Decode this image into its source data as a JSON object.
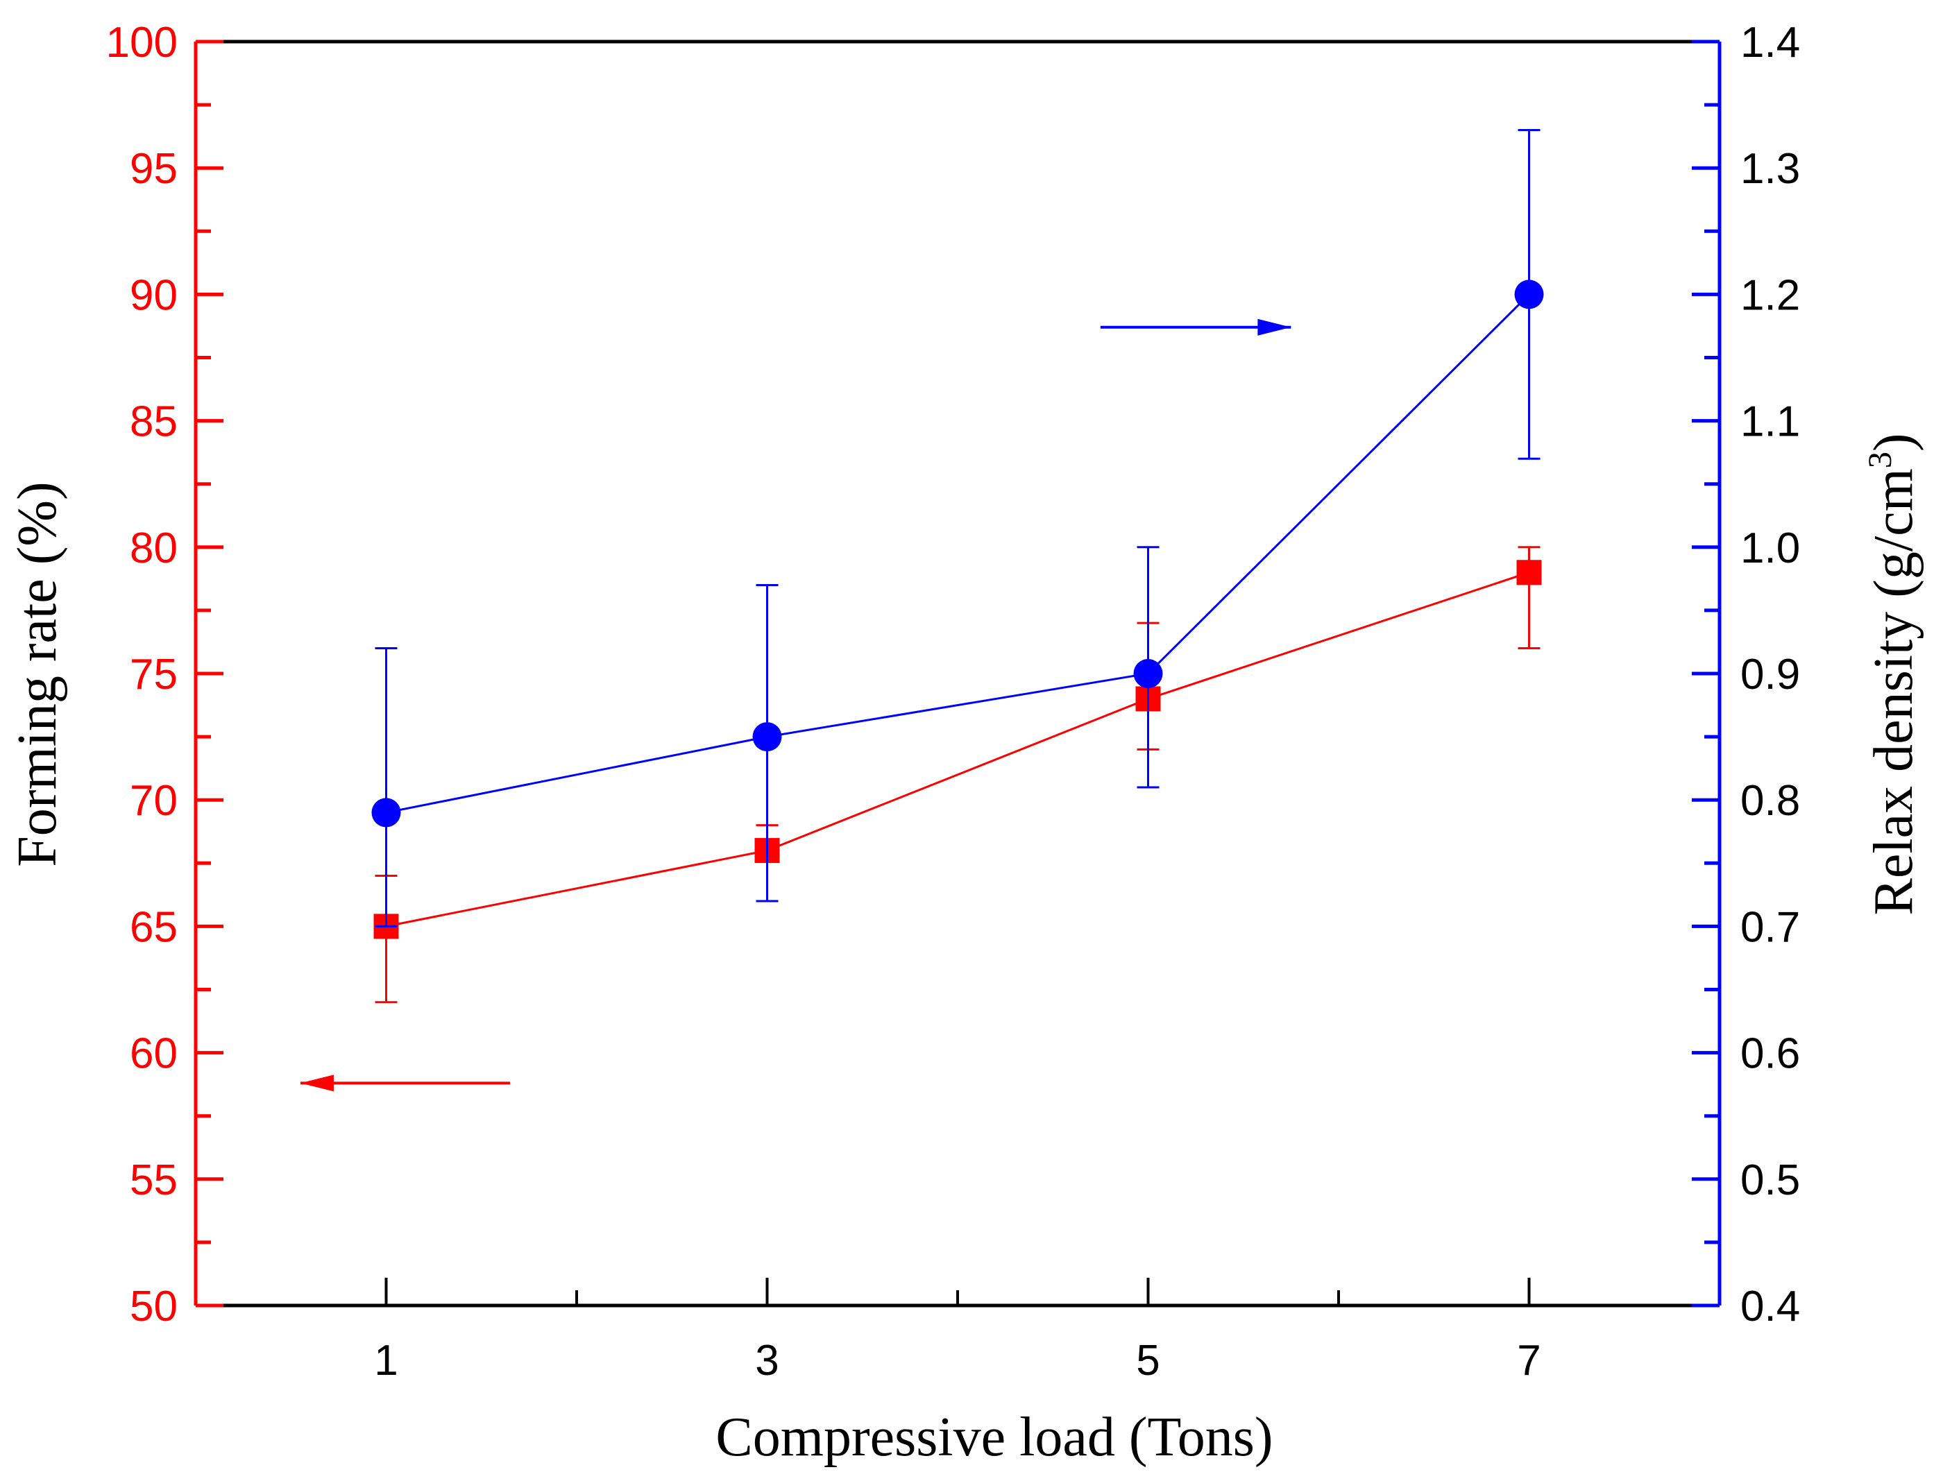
{
  "chart_data": {
    "type": "line",
    "title": "",
    "xlabel": "Compressive load (Tons)",
    "ylabel_left": "Forming rate (%)",
    "ylabel_right_main": "Relax density (g/cm",
    "ylabel_right_sup": "3",
    "ylabel_right_close": ")",
    "xlim": [
      0,
      8
    ],
    "ylim_left": [
      50,
      100
    ],
    "ylim_right": [
      0.4,
      1.4
    ],
    "x_ticks": [
      "1",
      "3",
      "5",
      "7"
    ],
    "x_tick_values": [
      1,
      3,
      5,
      7
    ],
    "y_left_ticks": [
      "50",
      "55",
      "60",
      "65",
      "70",
      "75",
      "80",
      "85",
      "90",
      "95",
      "100"
    ],
    "y_right_ticks": [
      "0.4",
      "0.5",
      "0.6",
      "0.7",
      "0.8",
      "0.9",
      "1.0",
      "1.1",
      "1.2",
      "1.3",
      "1.4"
    ],
    "grid": false,
    "series": [
      {
        "name": "Forming rate",
        "axis": "left",
        "marker": "square",
        "color": "#ff0000",
        "x": [
          1,
          3,
          5,
          7
        ],
        "values": [
          65,
          68,
          74,
          79
        ],
        "err_low": [
          62,
          66,
          72,
          76
        ],
        "err_high": [
          67,
          69,
          77,
          80
        ]
      },
      {
        "name": "Relax density",
        "axis": "right",
        "marker": "circle",
        "color": "#0000ff",
        "x": [
          1,
          3,
          5,
          7
        ],
        "values": [
          0.79,
          0.85,
          0.9,
          1.2
        ],
        "err_low": [
          0.7,
          0.72,
          0.81,
          1.07
        ],
        "err_high": [
          0.92,
          0.97,
          1.0,
          1.33
        ]
      }
    ],
    "annotations": [
      {
        "type": "arrow",
        "direction": "left",
        "color": "#ff0000",
        "refers_to": "left-axis",
        "x": [
          1.65,
          0.55
        ],
        "y": 58.8
      },
      {
        "type": "arrow",
        "direction": "right",
        "color": "#0000ff",
        "refers_to": "right-axis",
        "x": [
          4.75,
          5.75
        ],
        "y": 88.7
      }
    ],
    "colors": {
      "left_axis": "#ff0000",
      "right_axis": "#0000ff",
      "frame": "#000000"
    }
  }
}
